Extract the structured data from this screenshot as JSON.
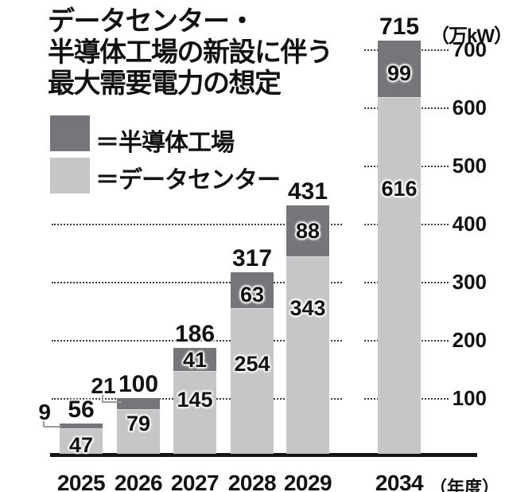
{
  "title": "データセンター・\n半導体工場の新設に伴う\n最大需要電力の想定",
  "legend": {
    "items": [
      {
        "label": "＝半導体工場",
        "color": "#76767a"
      },
      {
        "label": "＝データセンター",
        "color": "#c6c6c9"
      }
    ]
  },
  "axis": {
    "unit_label": "（万kW）",
    "x_suffix": "（年度）",
    "y_ticks": [
      "100",
      "200",
      "300",
      "400",
      "500",
      "600",
      "700"
    ]
  },
  "chart_data": {
    "type": "bar",
    "stacked": true,
    "title": "データセンター・半導体工場の新設に伴う最大需要電力の想定",
    "xlabel": "年度",
    "ylabel": "万kW",
    "categories": [
      "2025",
      "2026",
      "2027",
      "2028",
      "2029",
      "2034"
    ],
    "series": [
      {
        "name": "半導体工場",
        "color": "#76767a",
        "values": [
          9,
          21,
          41,
          63,
          88,
          99
        ]
      },
      {
        "name": "データセンター",
        "color": "#c6c6c9",
        "values": [
          47,
          79,
          145,
          254,
          343,
          616
        ]
      }
    ],
    "totals": [
      56,
      100,
      186,
      317,
      431,
      715
    ],
    "ylim": [
      0,
      750
    ],
    "gridlines": [
      100,
      200,
      300,
      400,
      500,
      600,
      700
    ],
    "grid": "dotted",
    "legend_position": "upper-left"
  },
  "colors": {
    "semiconductor": "#76767a",
    "datacenter": "#c6c6c9",
    "text": "#121212",
    "callout": "#9b9b9b",
    "grid": "#3c3c3c"
  }
}
